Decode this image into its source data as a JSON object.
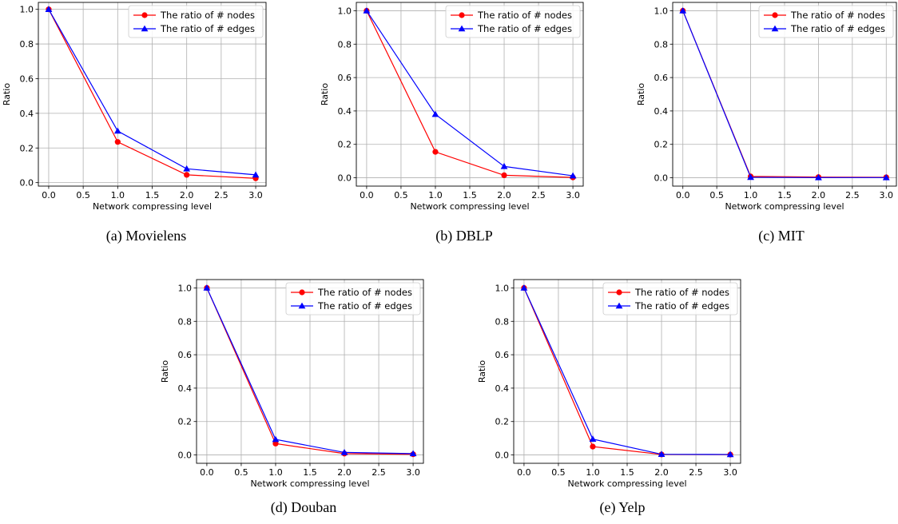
{
  "chart_data": [
    {
      "type": "line",
      "caption": "(a) Movielens",
      "xlabel": "Network compressing level",
      "ylabel": "Ratio",
      "x": [
        0.0,
        1.0,
        2.0,
        3.0
      ],
      "xticks": [
        "0.0",
        "0.5",
        "1.0",
        "1.5",
        "2.0",
        "2.5",
        "3.0"
      ],
      "yticks": [
        "0.0",
        "0.2",
        "0.4",
        "0.6",
        "0.8",
        "1.0"
      ],
      "xlim": [
        -0.15,
        3.15
      ],
      "ylim": [
        -0.02,
        1.04
      ],
      "grid": true,
      "legend_position": "top-right",
      "series": [
        {
          "name": "The ratio of # nodes",
          "color": "#ff0000",
          "marker": "circle",
          "values": [
            1.0,
            0.235,
            0.045,
            0.025
          ]
        },
        {
          "name": "The ratio of # edges",
          "color": "#0000ff",
          "marker": "triangle",
          "values": [
            1.0,
            0.298,
            0.08,
            0.045
          ]
        }
      ]
    },
    {
      "type": "line",
      "caption": "(b) DBLP",
      "xlabel": "Network compressing level",
      "ylabel": "Ratio",
      "x": [
        0.0,
        1.0,
        2.0,
        3.0
      ],
      "xticks": [
        "0.0",
        "0.5",
        "1.0",
        "1.5",
        "2.0",
        "2.5",
        "3.0"
      ],
      "yticks": [
        "0.0",
        "0.2",
        "0.4",
        "0.6",
        "0.8",
        "1.0"
      ],
      "xlim": [
        -0.15,
        3.15
      ],
      "ylim": [
        -0.05,
        1.05
      ],
      "grid": true,
      "legend_position": "top-right",
      "series": [
        {
          "name": "The ratio of # nodes",
          "color": "#ff0000",
          "marker": "circle",
          "values": [
            1.0,
            0.155,
            0.015,
            0.002
          ]
        },
        {
          "name": "The ratio of # edges",
          "color": "#0000ff",
          "marker": "triangle",
          "values": [
            1.0,
            0.38,
            0.068,
            0.012
          ]
        }
      ]
    },
    {
      "type": "line",
      "caption": "(c) MIT",
      "xlabel": "Network compressing level",
      "ylabel": "Ratio",
      "x": [
        0.0,
        1.0,
        2.0,
        3.0
      ],
      "xticks": [
        "0.0",
        "0.5",
        "1.0",
        "1.5",
        "2.0",
        "2.5",
        "3.0"
      ],
      "yticks": [
        "0.0",
        "0.2",
        "0.4",
        "0.6",
        "0.8",
        "1.0"
      ],
      "xlim": [
        -0.15,
        3.15
      ],
      "ylim": [
        -0.05,
        1.05
      ],
      "grid": true,
      "legend_position": "top-right",
      "series": [
        {
          "name": "The ratio of # nodes",
          "color": "#ff0000",
          "marker": "circle",
          "values": [
            1.0,
            0.008,
            0.004,
            0.003
          ]
        },
        {
          "name": "The ratio of # edges",
          "color": "#0000ff",
          "marker": "triangle",
          "values": [
            1.0,
            0.003,
            0.001,
            0.001
          ]
        }
      ]
    },
    {
      "type": "line",
      "caption": "(d) Douban",
      "xlabel": "Network compressing level",
      "ylabel": "Ratio",
      "x": [
        0.0,
        1.0,
        2.0,
        3.0
      ],
      "xticks": [
        "0.0",
        "0.5",
        "1.0",
        "1.5",
        "2.0",
        "2.5",
        "3.0"
      ],
      "yticks": [
        "0.0",
        "0.2",
        "0.4",
        "0.6",
        "0.8",
        "1.0"
      ],
      "xlim": [
        -0.15,
        3.15
      ],
      "ylim": [
        -0.05,
        1.05
      ],
      "grid": true,
      "legend_position": "top-right",
      "series": [
        {
          "name": "The ratio of # nodes",
          "color": "#ff0000",
          "marker": "circle",
          "values": [
            1.0,
            0.068,
            0.008,
            0.004
          ]
        },
        {
          "name": "The ratio of # edges",
          "color": "#0000ff",
          "marker": "triangle",
          "values": [
            1.0,
            0.093,
            0.015,
            0.008
          ]
        }
      ]
    },
    {
      "type": "line",
      "caption": "(e) Yelp",
      "xlabel": "Network compressing level",
      "ylabel": "Ratio",
      "x": [
        0.0,
        1.0,
        2.0,
        3.0
      ],
      "xticks": [
        "0.0",
        "0.5",
        "1.0",
        "1.5",
        "2.0",
        "2.5",
        "3.0"
      ],
      "yticks": [
        "0.0",
        "0.2",
        "0.4",
        "0.6",
        "0.8",
        "1.0"
      ],
      "xlim": [
        -0.15,
        3.15
      ],
      "ylim": [
        -0.05,
        1.05
      ],
      "grid": true,
      "legend_position": "top-right",
      "series": [
        {
          "name": "The ratio of # nodes",
          "color": "#ff0000",
          "marker": "circle",
          "values": [
            1.0,
            0.05,
            0.003,
            0.002
          ]
        },
        {
          "name": "The ratio of # edges",
          "color": "#0000ff",
          "marker": "triangle",
          "values": [
            1.0,
            0.095,
            0.004,
            0.003
          ]
        }
      ]
    }
  ]
}
